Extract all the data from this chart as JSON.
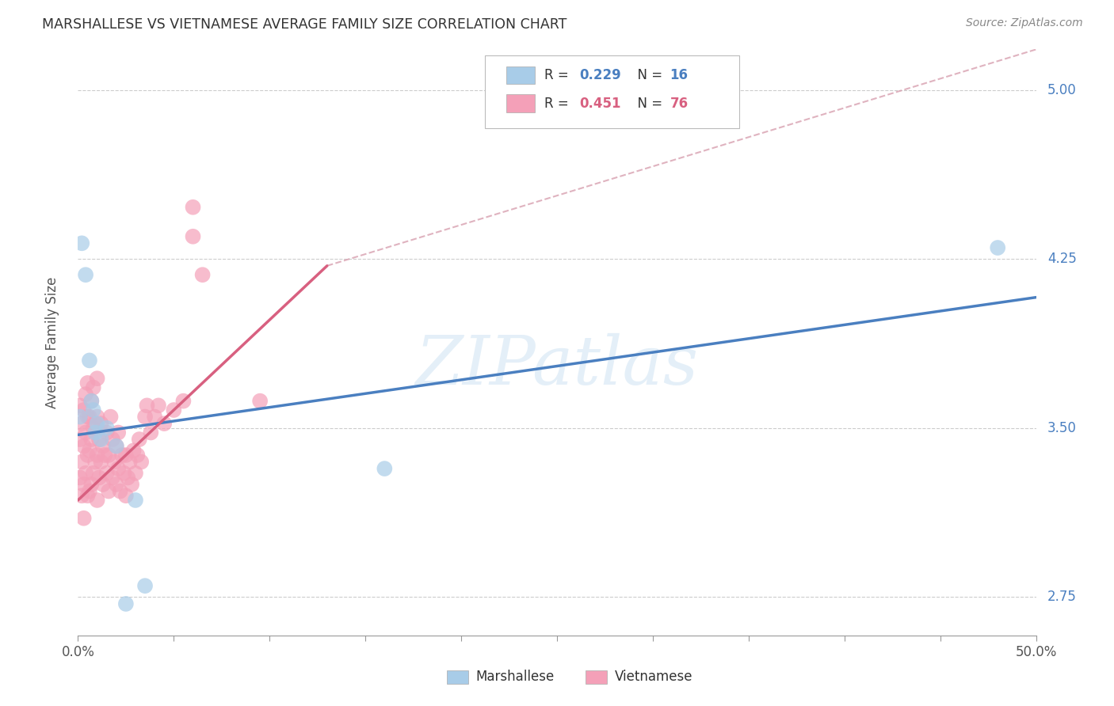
{
  "title": "MARSHALLESE VS VIETNAMESE AVERAGE FAMILY SIZE CORRELATION CHART",
  "source": "Source: ZipAtlas.com",
  "ylabel": "Average Family Size",
  "right_yticks": [
    2.75,
    3.5,
    4.25,
    5.0
  ],
  "background_color": "#ffffff",
  "watermark": "ZIPatlas",
  "blue_color": "#a8cce8",
  "pink_color": "#f4a0b8",
  "blue_line_color": "#4a7fc0",
  "pink_line_color": "#d86080",
  "dashed_line_color": "#d8a0b0",
  "blue_r": "0.229",
  "blue_n": "16",
  "pink_r": "0.451",
  "pink_n": "76",
  "marshallese_x": [
    0.001,
    0.002,
    0.004,
    0.006,
    0.007,
    0.008,
    0.009,
    0.01,
    0.012,
    0.015,
    0.02,
    0.025,
    0.03,
    0.035,
    0.16,
    0.48
  ],
  "marshallese_y": [
    3.55,
    4.32,
    4.18,
    3.8,
    3.62,
    3.58,
    3.48,
    3.52,
    3.45,
    3.5,
    3.42,
    2.72,
    3.18,
    2.8,
    3.32,
    4.3
  ],
  "vietnamese_x": [
    0.001,
    0.001,
    0.001,
    0.002,
    0.002,
    0.002,
    0.003,
    0.003,
    0.003,
    0.003,
    0.004,
    0.004,
    0.004,
    0.005,
    0.005,
    0.005,
    0.005,
    0.006,
    0.006,
    0.006,
    0.007,
    0.007,
    0.007,
    0.008,
    0.008,
    0.008,
    0.009,
    0.009,
    0.01,
    0.01,
    0.01,
    0.01,
    0.011,
    0.011,
    0.012,
    0.012,
    0.013,
    0.013,
    0.014,
    0.015,
    0.015,
    0.016,
    0.016,
    0.017,
    0.018,
    0.018,
    0.019,
    0.02,
    0.02,
    0.021,
    0.021,
    0.022,
    0.023,
    0.024,
    0.025,
    0.025,
    0.026,
    0.027,
    0.028,
    0.029,
    0.03,
    0.031,
    0.032,
    0.033,
    0.035,
    0.036,
    0.038,
    0.04,
    0.042,
    0.045,
    0.05,
    0.055,
    0.06,
    0.06,
    0.065,
    0.095
  ],
  "vietnamese_y": [
    3.28,
    3.45,
    3.6,
    3.2,
    3.35,
    3.52,
    3.1,
    3.25,
    3.42,
    3.58,
    3.3,
    3.48,
    3.65,
    3.2,
    3.38,
    3.55,
    3.7,
    3.22,
    3.4,
    3.55,
    3.25,
    3.45,
    3.62,
    3.3,
    3.5,
    3.68,
    3.35,
    3.52,
    3.18,
    3.38,
    3.55,
    3.72,
    3.28,
    3.45,
    3.35,
    3.52,
    3.25,
    3.42,
    3.38,
    3.3,
    3.48,
    3.22,
    3.38,
    3.55,
    3.28,
    3.45,
    3.35,
    3.25,
    3.42,
    3.32,
    3.48,
    3.22,
    3.38,
    3.3,
    3.2,
    3.38,
    3.28,
    3.35,
    3.25,
    3.4,
    3.3,
    3.38,
    3.45,
    3.35,
    3.55,
    3.6,
    3.48,
    3.55,
    3.6,
    3.52,
    3.58,
    3.62,
    4.48,
    4.35,
    4.18,
    3.62
  ],
  "blue_line_x0": 0.0,
  "blue_line_y0": 3.47,
  "blue_line_x1": 0.5,
  "blue_line_y1": 4.08,
  "pink_line_x0": 0.0,
  "pink_line_y0": 3.18,
  "pink_line_x1": 0.13,
  "pink_line_y1": 4.22,
  "dash_line_x0": 0.13,
  "dash_line_y0": 4.22,
  "dash_line_x1": 0.5,
  "dash_line_y1": 5.18,
  "xmin": 0.0,
  "xmax": 0.5,
  "ymin": 2.58,
  "ymax": 5.18
}
